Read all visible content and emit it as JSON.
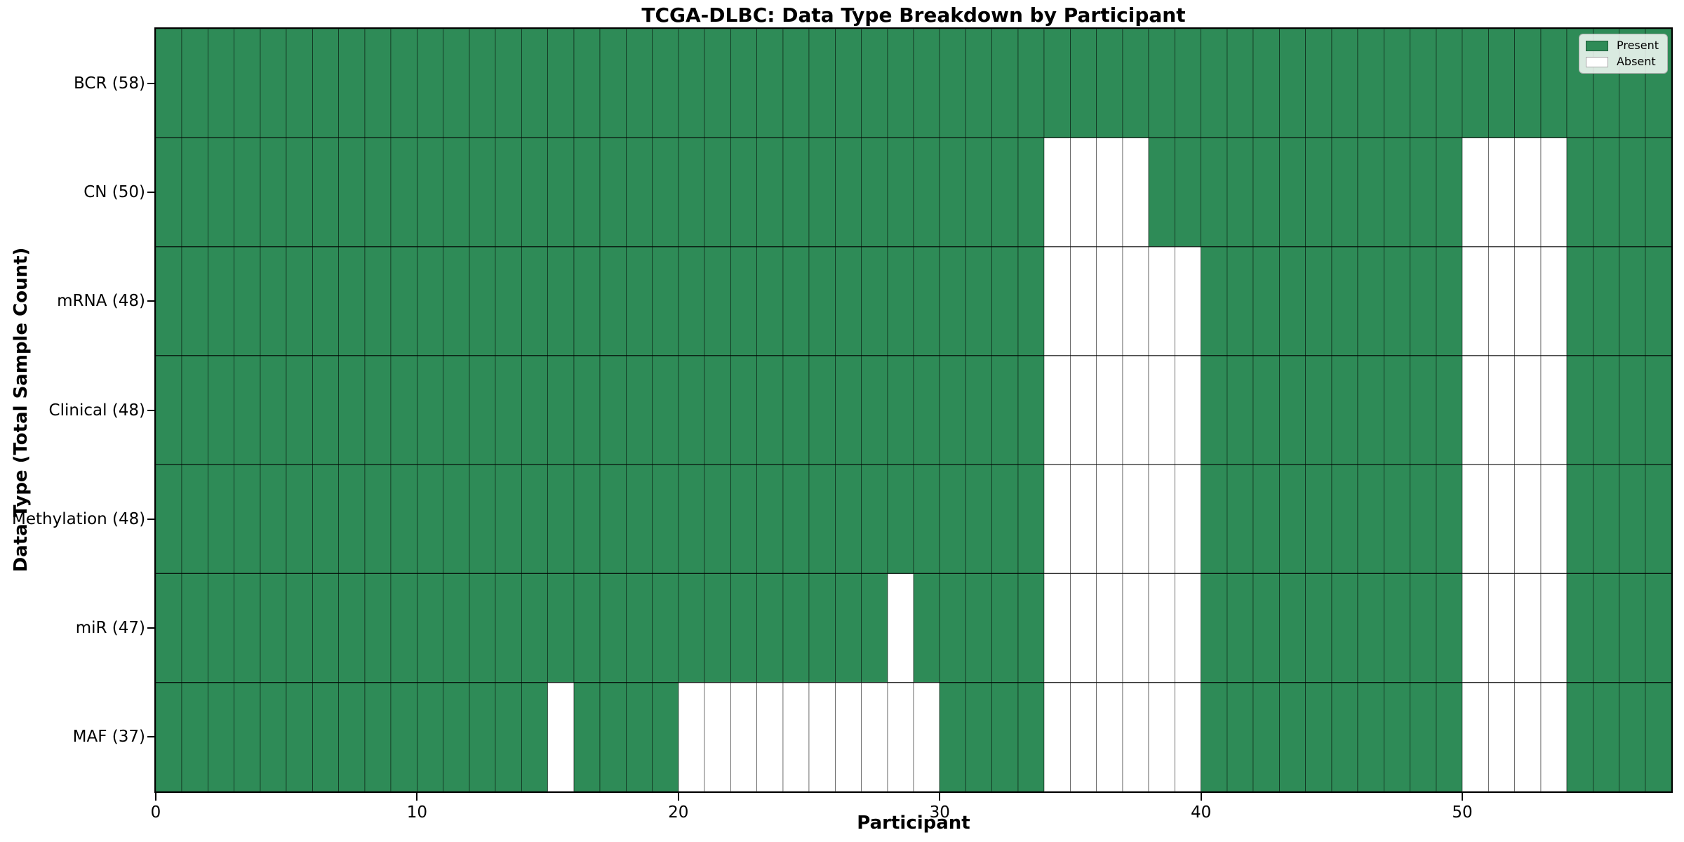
{
  "chart_data": {
    "type": "heatmap",
    "title": "TCGA-DLBC: Data Type Breakdown by Participant",
    "xlabel": "Participant",
    "ylabel": "Data Type (Total Sample Count)",
    "n_participants": 58,
    "x_ticks": [
      0,
      10,
      20,
      30,
      40,
      50
    ],
    "axis_range": {
      "x": [
        0,
        58
      ],
      "rows": 7
    },
    "colors": {
      "present": "#2e8b57",
      "absent": "#ffffff",
      "cell_edge": "rgba(0,0,0,0.45)"
    },
    "legend_position": "upper-right",
    "legend": [
      {
        "label": "Present",
        "color": "#2e8b57"
      },
      {
        "label": "Absent",
        "color": "#ffffff"
      }
    ],
    "rows": [
      {
        "label": "BCR (58)",
        "data_type": "BCR",
        "total": 58,
        "absent_participants": []
      },
      {
        "label": "CN (50)",
        "data_type": "CN",
        "total": 50,
        "absent_participants": [
          34,
          35,
          36,
          37,
          50,
          51,
          52,
          53
        ]
      },
      {
        "label": "mRNA (48)",
        "data_type": "mRNA",
        "total": 48,
        "absent_participants": [
          34,
          35,
          36,
          37,
          38,
          39,
          50,
          51,
          52,
          53
        ]
      },
      {
        "label": "Clinical (48)",
        "data_type": "Clinical",
        "total": 48,
        "absent_participants": [
          34,
          35,
          36,
          37,
          38,
          39,
          50,
          51,
          52,
          53
        ]
      },
      {
        "label": "Methylation (48)",
        "data_type": "Methylation",
        "total": 48,
        "absent_participants": [
          34,
          35,
          36,
          37,
          38,
          39,
          50,
          51,
          52,
          53
        ]
      },
      {
        "label": "miR (47)",
        "data_type": "miR",
        "total": 47,
        "absent_participants": [
          28,
          34,
          35,
          36,
          37,
          38,
          39,
          50,
          51,
          52,
          53
        ]
      },
      {
        "label": "MAF (37)",
        "data_type": "MAF",
        "total": 37,
        "absent_participants": [
          15,
          20,
          21,
          22,
          23,
          24,
          25,
          26,
          27,
          28,
          29,
          34,
          35,
          36,
          37,
          38,
          39,
          50,
          51,
          52,
          53
        ]
      }
    ]
  }
}
